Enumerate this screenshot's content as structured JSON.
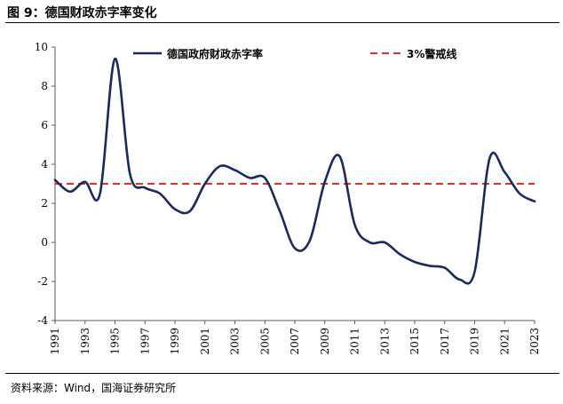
{
  "header": {
    "figure_title": "图 9：德国财政赤字率变化"
  },
  "footer": {
    "source": "资料来源：Wind，国海证券研究所"
  },
  "colors": {
    "series_line": "#1b2a5c",
    "threshold_line": "#e0302a",
    "axis": "#595959"
  },
  "chart_data": {
    "type": "line",
    "title": "",
    "xlabel": "",
    "ylabel": "",
    "ylim": [
      -4,
      10
    ],
    "yticks": [
      -4,
      -2,
      0,
      2,
      4,
      6,
      8,
      10
    ],
    "xlim": [
      1991,
      2023
    ],
    "xticks": [
      "1991",
      "1993",
      "1995",
      "1997",
      "1999",
      "2001",
      "2003",
      "2005",
      "2007",
      "2009",
      "2011",
      "2013",
      "2015",
      "2017",
      "2019",
      "2021",
      "2023"
    ],
    "grid": false,
    "legend_position": "top",
    "series": [
      {
        "name": "德国政府财政赤字率",
        "x": [
          1991,
          1992,
          1993,
          1994,
          1995,
          1996,
          1997,
          1998,
          1999,
          2000,
          2001,
          2002,
          2003,
          2004,
          2005,
          2006,
          2007,
          2008,
          2009,
          2010,
          2011,
          2012,
          2013,
          2014,
          2015,
          2016,
          2017,
          2018,
          2019,
          2020,
          2021,
          2022,
          2023
        ],
        "values": [
          3.2,
          2.6,
          3.1,
          2.5,
          9.4,
          3.5,
          2.8,
          2.5,
          1.7,
          1.6,
          3.0,
          3.9,
          3.7,
          3.3,
          3.3,
          1.6,
          -0.3,
          0.1,
          3.1,
          4.4,
          0.9,
          0.0,
          0.0,
          -0.6,
          -1.0,
          -1.2,
          -1.3,
          -1.9,
          -1.5,
          4.3,
          3.6,
          2.5,
          2.1
        ]
      },
      {
        "name": "3%警戒线",
        "x": [
          1991,
          2023
        ],
        "values": [
          3,
          3
        ]
      }
    ]
  }
}
